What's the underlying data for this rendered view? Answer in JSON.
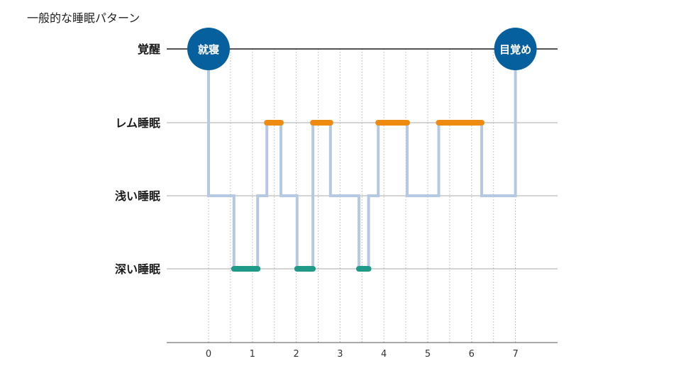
{
  "chart_data": {
    "type": "line",
    "title": "一般的な睡眠パターン",
    "xlabel": "",
    "ylabel": "",
    "x_ticks": [
      0,
      1,
      2,
      3,
      4,
      5,
      6,
      7
    ],
    "xlim": [
      -1,
      7.75
    ],
    "stages": [
      "覚醒",
      "レム睡眠",
      "浅い睡眠",
      "深い睡眠"
    ],
    "grid": true,
    "colors": {
      "path": "#b5c9e3",
      "rem": "#ee8a0e",
      "deep": "#1f9988",
      "marker": "#07609e",
      "gridline": "#aaaaaa",
      "awake_line": "#1a1a1a"
    },
    "hypnogram": [
      {
        "x": 0,
        "stage": 0
      },
      {
        "x": 0,
        "stage": 2
      },
      {
        "x": 0.58,
        "stage": 2
      },
      {
        "x": 0.58,
        "stage": 3
      },
      {
        "x": 1.12,
        "stage": 3
      },
      {
        "x": 1.12,
        "stage": 2
      },
      {
        "x": 1.33,
        "stage": 2
      },
      {
        "x": 1.33,
        "stage": 1
      },
      {
        "x": 1.65,
        "stage": 1
      },
      {
        "x": 1.65,
        "stage": 2
      },
      {
        "x": 2.02,
        "stage": 2
      },
      {
        "x": 2.02,
        "stage": 3
      },
      {
        "x": 2.38,
        "stage": 3
      },
      {
        "x": 2.38,
        "stage": 1
      },
      {
        "x": 2.78,
        "stage": 1
      },
      {
        "x": 2.78,
        "stage": 2
      },
      {
        "x": 3.43,
        "stage": 2
      },
      {
        "x": 3.43,
        "stage": 3
      },
      {
        "x": 3.65,
        "stage": 3
      },
      {
        "x": 3.65,
        "stage": 2
      },
      {
        "x": 3.87,
        "stage": 2
      },
      {
        "x": 3.87,
        "stage": 1
      },
      {
        "x": 4.53,
        "stage": 1
      },
      {
        "x": 4.53,
        "stage": 2
      },
      {
        "x": 5.25,
        "stage": 2
      },
      {
        "x": 5.25,
        "stage": 1
      },
      {
        "x": 6.23,
        "stage": 1
      },
      {
        "x": 6.23,
        "stage": 2
      },
      {
        "x": 7,
        "stage": 2
      },
      {
        "x": 7,
        "stage": 0
      }
    ],
    "rem_segments": [
      {
        "start": 1.33,
        "end": 1.65
      },
      {
        "start": 2.38,
        "end": 2.78
      },
      {
        "start": 3.87,
        "end": 4.53
      },
      {
        "start": 5.25,
        "end": 6.23
      }
    ],
    "deep_segments": [
      {
        "start": 0.58,
        "end": 1.12
      },
      {
        "start": 2.02,
        "end": 2.38
      },
      {
        "start": 3.43,
        "end": 3.65
      }
    ],
    "markers": [
      {
        "x": 0,
        "label": "就寝"
      },
      {
        "x": 7,
        "label": "目覚め"
      }
    ]
  }
}
